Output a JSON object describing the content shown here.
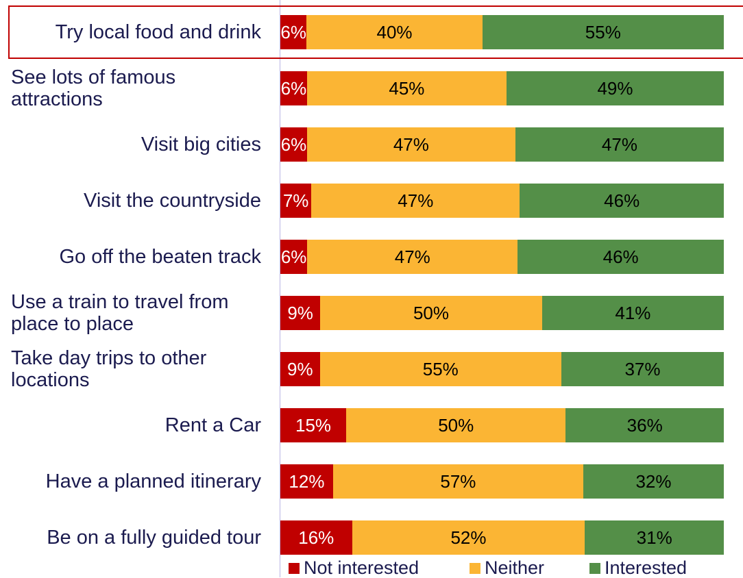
{
  "chart_data": {
    "type": "bar",
    "orientation": "horizontal",
    "stacking": "percent",
    "categories": [
      "Try local food and drink",
      "See lots of famous attractions",
      "Visit big cities",
      "Visit the countryside",
      "Go off the beaten track",
      "Use a train to travel from place to place",
      "Take day trips to other locations",
      "Rent a Car",
      "Have a planned itinerary",
      "Be on a fully guided tour"
    ],
    "series": [
      {
        "name": "Not interested",
        "color": "#c00000",
        "label_color": "#ffffff",
        "values": [
          6,
          6,
          6,
          7,
          6,
          9,
          9,
          15,
          12,
          16
        ],
        "value_labels": [
          "6%",
          "6%",
          "6%",
          "7%",
          "6%",
          "9%",
          "9%",
          "15%",
          "12%",
          "16%"
        ]
      },
      {
        "name": "Neither",
        "color": "#fbb534",
        "label_color": "#000000",
        "values": [
          40,
          45,
          47,
          47,
          47,
          50,
          55,
          50,
          57,
          52
        ],
        "value_labels": [
          "40%",
          "45%",
          "47%",
          "47%",
          "47%",
          "50%",
          "55%",
          "50%",
          "57%",
          "52%"
        ]
      },
      {
        "name": "Interested",
        "color": "#548f48",
        "label_color": "#000000",
        "values": [
          55,
          49,
          47,
          46,
          46,
          41,
          37,
          36,
          32,
          31
        ],
        "value_labels": [
          "55%",
          "49%",
          "47%",
          "46%",
          "46%",
          "41%",
          "37%",
          "36%",
          "32%",
          "31%"
        ]
      }
    ],
    "legend": "bottom"
  }
}
